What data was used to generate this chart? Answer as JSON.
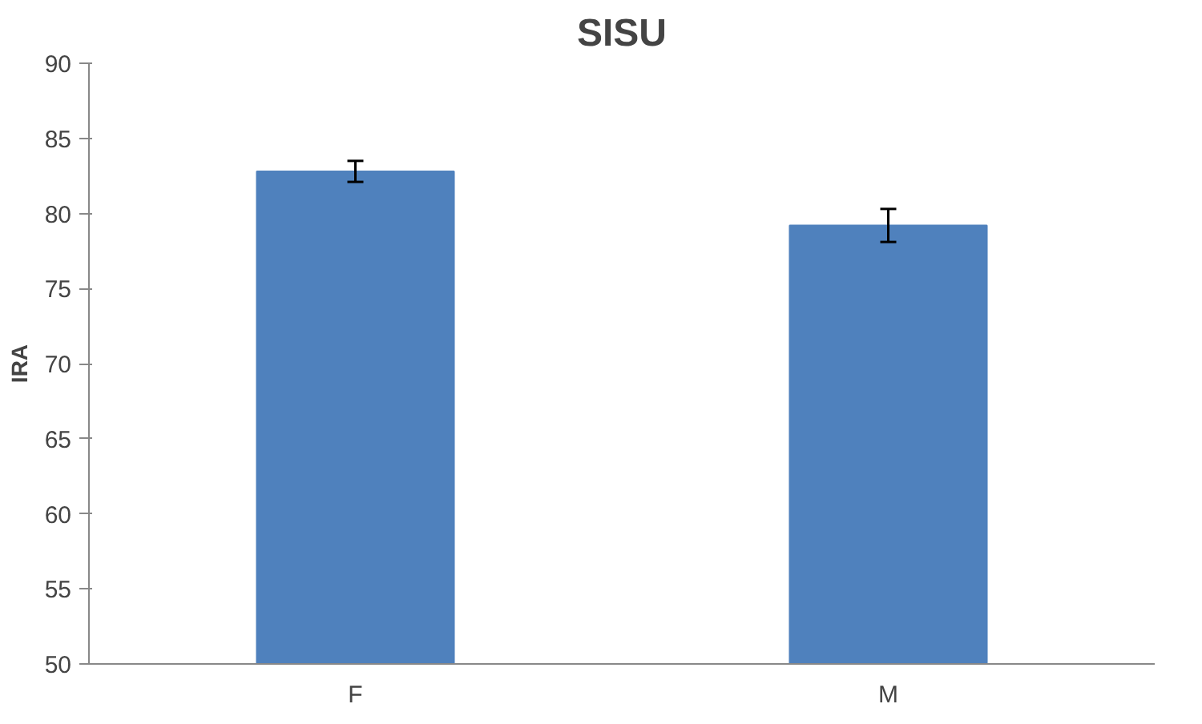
{
  "chart_data": {
    "type": "bar",
    "title": "SISU",
    "ylabel": "IRA",
    "categories": [
      "F",
      "M"
    ],
    "values": [
      82.8,
      79.2
    ],
    "errors": [
      0.7,
      1.1
    ],
    "color": "#4f81bd",
    "ylim": [
      50,
      90
    ],
    "yticks": [
      50,
      55,
      60,
      65,
      70,
      75,
      80,
      85,
      90
    ],
    "grid": false
  }
}
